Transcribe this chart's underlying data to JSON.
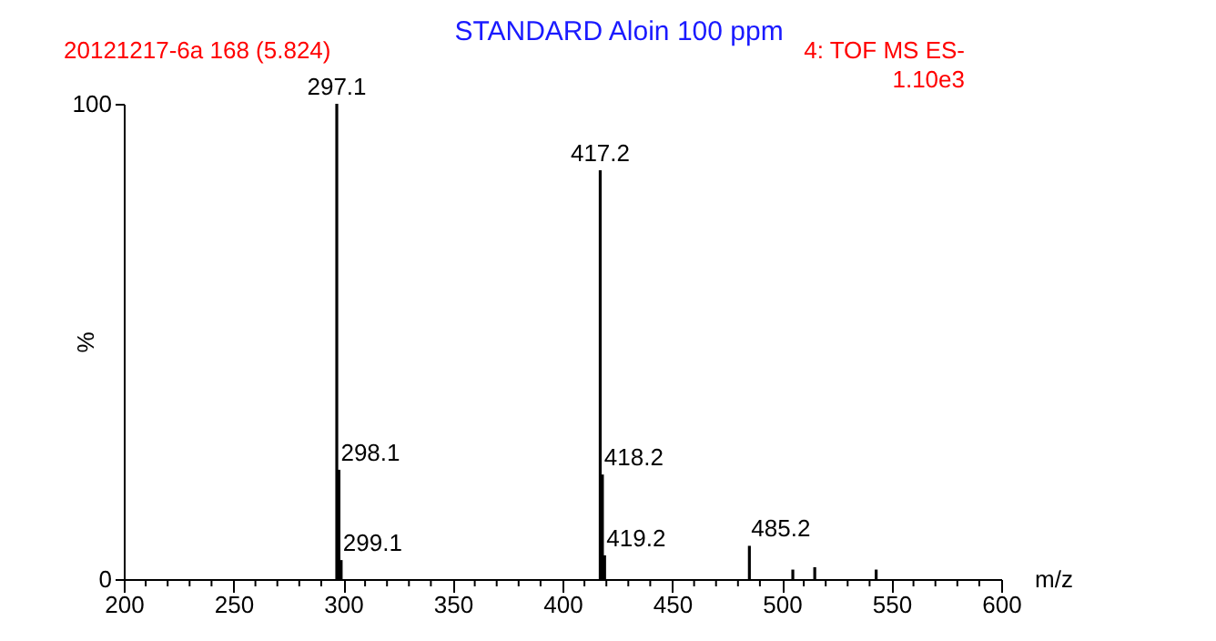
{
  "chart_data": {
    "type": "bar",
    "title": "STANDARD  Aloin  100 ppm",
    "annotations": [
      "20121217-6a 168 (5.824)",
      "4: TOF MS ES-",
      "1.10e3",
      {
        "text": "297.1",
        "x": 297.1,
        "y": 100
      },
      {
        "text": "298.1",
        "x": 298.1,
        "y": 23
      },
      {
        "text": "299.1",
        "x": 299.1,
        "y": 4
      },
      {
        "text": "417.2",
        "x": 417.2,
        "y": 86
      },
      {
        "text": "418.2",
        "x": 418.2,
        "y": 22
      },
      {
        "text": "419.2",
        "x": 419.2,
        "y": 5
      },
      {
        "text": "485.2",
        "x": 485.2,
        "y": 7
      }
    ],
    "xlabel": "m/z",
    "ylabel": "%",
    "x": [
      297.1,
      298.1,
      299.1,
      417.2,
      418.2,
      419.2,
      485.2,
      505.0,
      515.0,
      543.0
    ],
    "values": [
      100,
      23,
      4,
      86,
      22,
      5,
      7,
      2,
      2.5,
      2
    ],
    "color": "#000000",
    "xlim": [
      200,
      600
    ],
    "xticks": [
      200,
      {
        "value": 210,
        "label": null
      },
      {
        "value": 220,
        "label": null
      },
      {
        "value": 230,
        "label": null
      },
      {
        "value": 240,
        "label": null
      },
      250,
      {
        "value": 260,
        "label": null
      },
      {
        "value": 270,
        "label": null
      },
      {
        "value": 280,
        "label": null
      },
      {
        "value": 290,
        "label": null
      },
      300,
      {
        "value": 310,
        "label": null
      },
      {
        "value": 320,
        "label": null
      },
      {
        "value": 330,
        "label": null
      },
      {
        "value": 340,
        "label": null
      },
      350,
      {
        "value": 360,
        "label": null
      },
      {
        "value": 370,
        "label": null
      },
      {
        "value": 380,
        "label": null
      },
      {
        "value": 390,
        "label": null
      },
      400,
      {
        "value": 410,
        "label": null
      },
      {
        "value": 420,
        "label": null
      },
      {
        "value": 430,
        "label": null
      },
      {
        "value": 440,
        "label": null
      },
      450,
      {
        "value": 460,
        "label": null
      },
      {
        "value": 470,
        "label": null
      },
      {
        "value": 480,
        "label": null
      },
      {
        "value": 490,
        "label": null
      },
      500,
      {
        "value": 510,
        "label": null
      },
      {
        "value": 520,
        "label": null
      },
      {
        "value": 530,
        "label": null
      },
      {
        "value": 540,
        "label": null
      },
      550,
      {
        "value": 560,
        "label": null
      },
      {
        "value": 570,
        "label": null
      },
      {
        "value": 580,
        "label": null
      },
      {
        "value": 590,
        "label": null
      },
      600
    ],
    "ylim": [
      0,
      100
    ],
    "yticks": [
      0,
      100
    ],
    "grid": false
  }
}
